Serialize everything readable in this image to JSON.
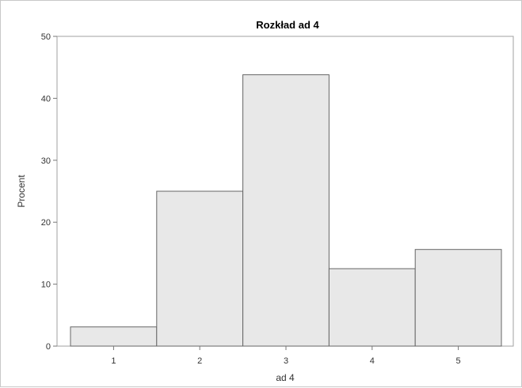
{
  "chart_data": {
    "type": "bar",
    "title": "Rozkład ad 4",
    "xlabel": "ad 4",
    "ylabel": "Procent",
    "categories": [
      "1",
      "2",
      "3",
      "4",
      "5"
    ],
    "values": [
      3.1,
      25.0,
      43.8,
      12.5,
      15.6
    ],
    "ylim": [
      0,
      50
    ],
    "yticks": [
      0,
      10,
      20,
      30,
      40,
      50
    ],
    "grid": false,
    "legend": "none",
    "colors": {
      "bar_fill": "#e8e8e8",
      "bar_stroke": "#666666",
      "axis": "#777777",
      "plot_border": "#a0a0a0"
    }
  }
}
